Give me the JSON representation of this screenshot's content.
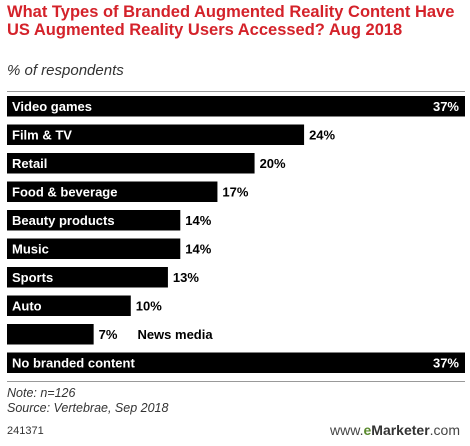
{
  "chart_data": {
    "type": "bar",
    "orientation": "horizontal",
    "title": "What Types of Branded Augmented Reality Content Have US Augmented Reality Users Accessed? Aug 2018",
    "subtitle": "% of respondents",
    "categories": [
      "Video games",
      "Film & TV",
      "Retail",
      "Food & beverage",
      "Beauty products",
      "Music",
      "Sports",
      "Auto",
      "News media",
      "No branded content"
    ],
    "values": [
      37,
      24,
      20,
      17,
      14,
      14,
      13,
      10,
      7,
      37
    ],
    "value_labels": [
      "37%",
      "24%",
      "20%",
      "17%",
      "14%",
      "14%",
      "13%",
      "10%",
      "7%",
      "37%"
    ],
    "xlim": [
      0,
      37
    ],
    "bar_color": "#000000",
    "grid": false,
    "legend": "none"
  },
  "footnote": {
    "note": "Note: n=126",
    "source": "Source: Vertebrae, Sep 2018"
  },
  "chart_id": "241371",
  "brand": {
    "prefix": "www.",
    "accent": "e",
    "bold": "Marketer",
    "suffix": ".com"
  },
  "colors": {
    "title": "#d4222a",
    "bar": "#000000",
    "label_on_bar": "#ffffff",
    "label_off_bar": "#000000"
  }
}
